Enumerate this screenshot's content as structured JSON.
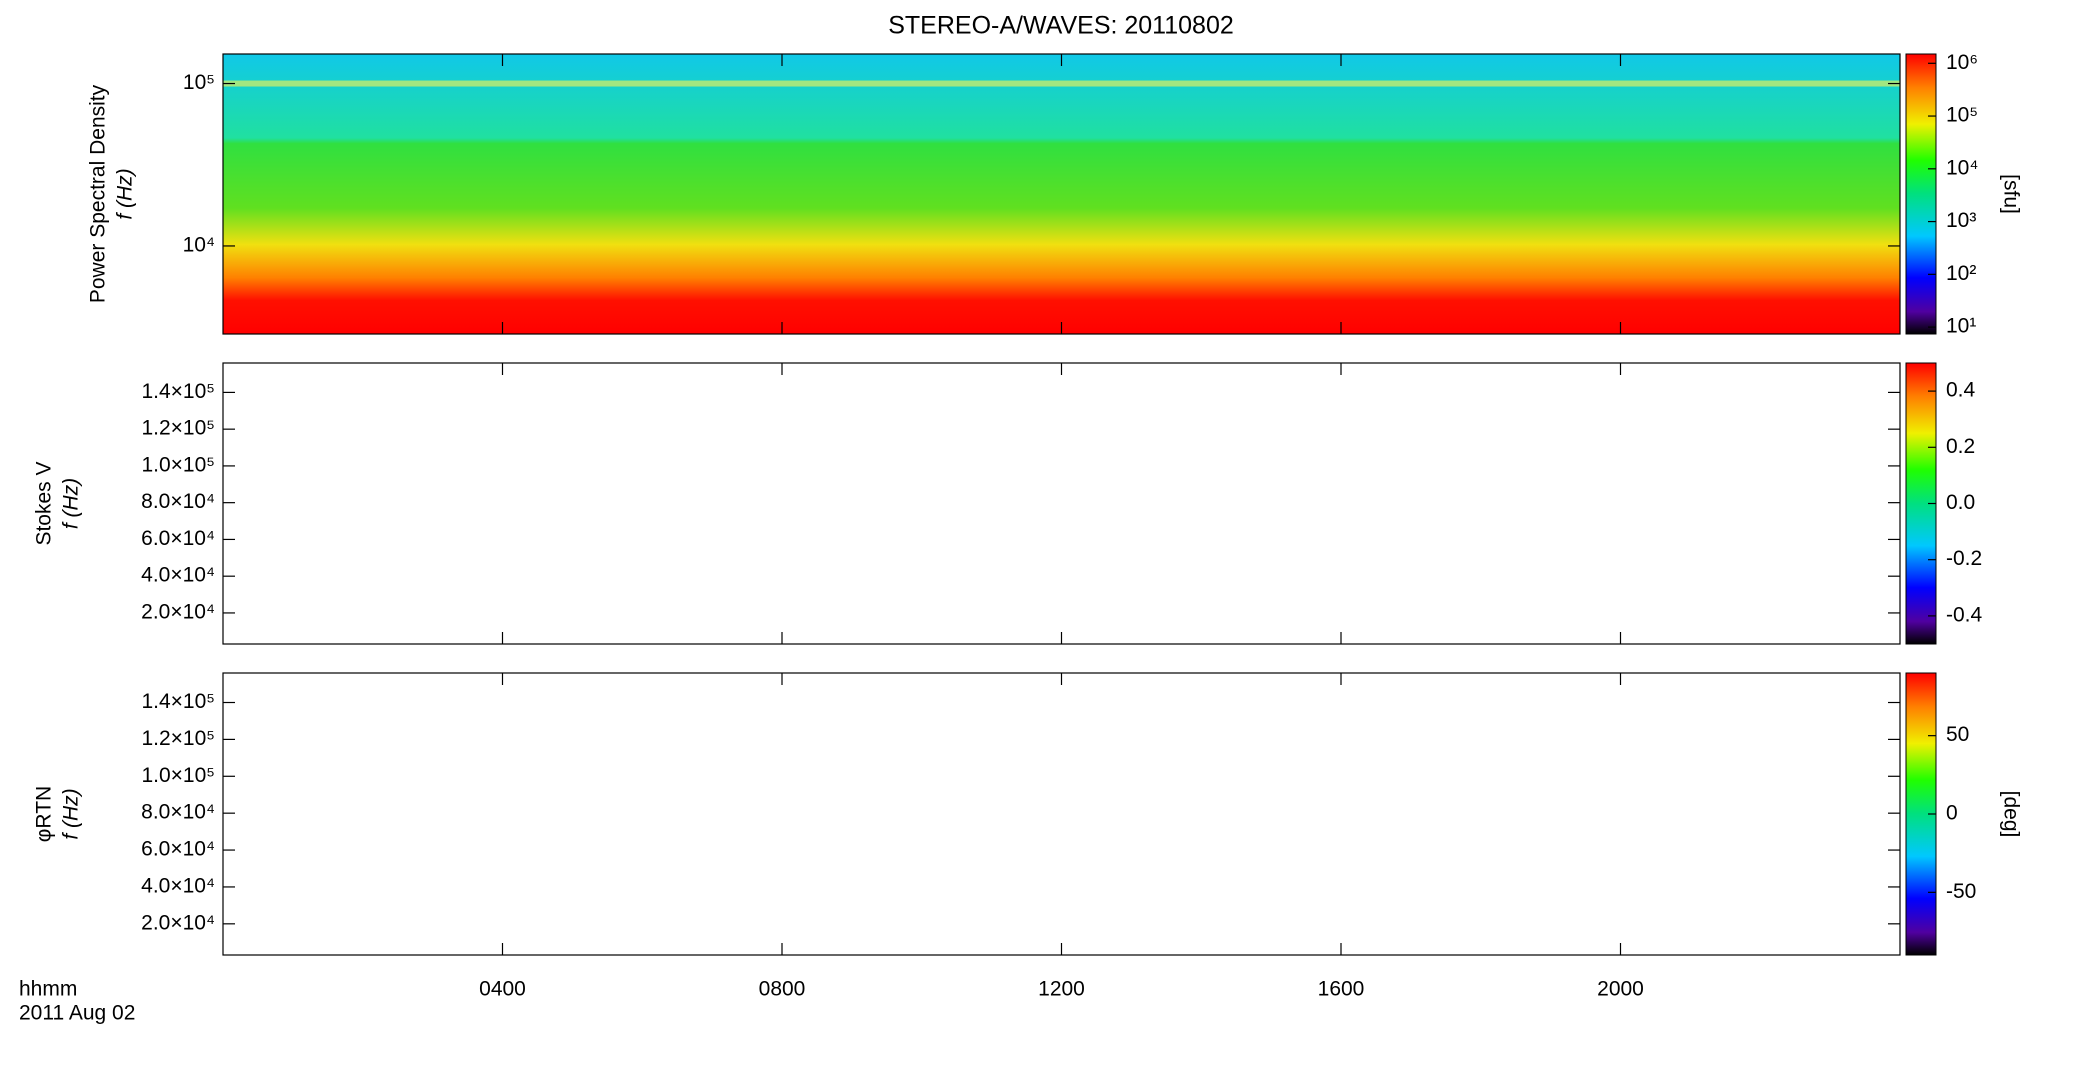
{
  "chart_data": [
    {
      "type": "heatmap",
      "title": "STEREO-A/WAVES: 20110802",
      "ylabel": [
        "Power Spectral Density",
        "f (Hz)"
      ],
      "ylog": true,
      "xlim": [
        0,
        24
      ],
      "ylim": [
        2870,
        152000
      ],
      "yticks": [
        {
          "value": 10000,
          "label": "10⁴"
        },
        {
          "value": 100000,
          "label": "10⁵"
        }
      ],
      "colorbar": {
        "label": "[sfu]",
        "log": true,
        "lim": [
          7.4,
          1500000
        ],
        "ticks": [
          {
            "value": 10,
            "label": "10¹"
          },
          {
            "value": 100,
            "label": "10²"
          },
          {
            "value": 1000,
            "label": "10³"
          },
          {
            "value": 10000,
            "label": "10⁴"
          },
          {
            "value": 100000,
            "label": "10⁵"
          },
          {
            "value": 1000000,
            "label": "10⁶"
          }
        ]
      }
    },
    {
      "type": "heatmap",
      "ylabel": [
        "Stokes V",
        "f (Hz)"
      ],
      "ylog": false,
      "xlim": [
        0,
        24
      ],
      "ylim": [
        3100,
        156000
      ],
      "yticks": [
        {
          "value": 20000,
          "label": "2.0×10⁴"
        },
        {
          "value": 40000,
          "label": "4.0×10⁴"
        },
        {
          "value": 60000,
          "label": "6.0×10⁴"
        },
        {
          "value": 80000,
          "label": "8.0×10⁴"
        },
        {
          "value": 100000,
          "label": "1.0×10⁵"
        },
        {
          "value": 120000,
          "label": "1.2×10⁵"
        },
        {
          "value": 140000,
          "label": "1.4×10⁵"
        }
      ],
      "colorbar": {
        "log": false,
        "lim": [
          -0.5,
          0.5
        ],
        "ticks": [
          -0.4,
          -0.2,
          {
            "value": 0,
            "label": "0.0"
          },
          0.2,
          0.4
        ]
      }
    },
    {
      "type": "heatmap",
      "ylabel": [
        "φRTN",
        "f (Hz)"
      ],
      "ylog": false,
      "xlim": [
        0,
        24
      ],
      "ylim": [
        3100,
        156000
      ],
      "yticks": [
        {
          "value": 20000,
          "label": "2.0×10⁴"
        },
        {
          "value": 40000,
          "label": "4.0×10⁴"
        },
        {
          "value": 60000,
          "label": "6.0×10⁴"
        },
        {
          "value": 80000,
          "label": "8.0×10⁴"
        },
        {
          "value": 100000,
          "label": "1.0×10⁵"
        },
        {
          "value": 120000,
          "label": "1.2×10⁵"
        },
        {
          "value": 140000,
          "label": "1.4×10⁵"
        }
      ],
      "colorbar": {
        "label": "[deg]",
        "log": false,
        "lim": [
          -90,
          90
        ],
        "ticks": [
          -50,
          0,
          50
        ]
      },
      "xlabel": [
        "hhmm",
        "2011 Aug 02"
      ],
      "xticks": [
        {
          "value": 4,
          "label": "0400"
        },
        {
          "value": 8,
          "label": "0800"
        },
        {
          "value": 12,
          "label": "1200"
        },
        {
          "value": 16,
          "label": "1600"
        },
        {
          "value": 20,
          "label": "2000"
        }
      ]
    }
  ]
}
